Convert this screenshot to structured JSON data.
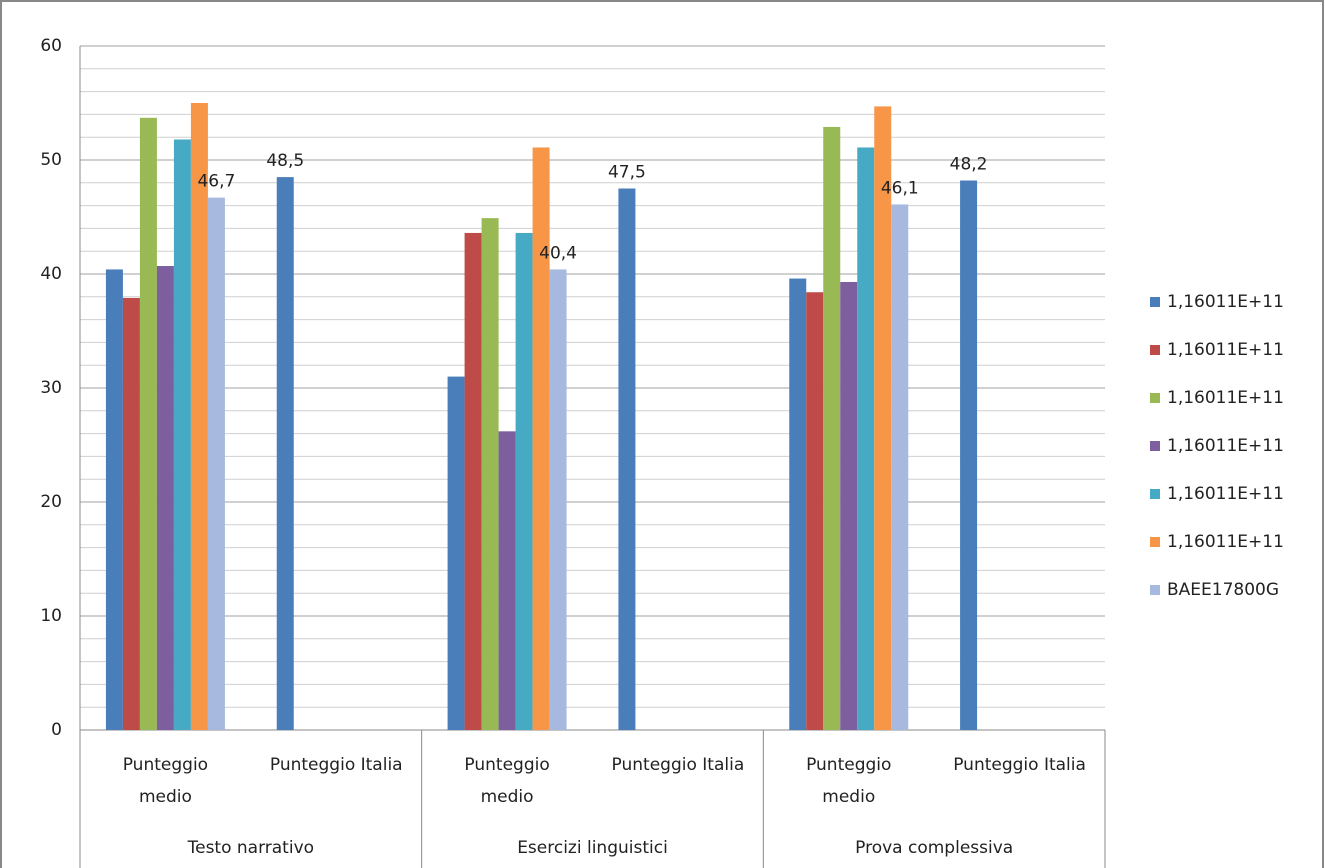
{
  "chart_data": {
    "type": "bar",
    "categories": [
      "Punteggio medio",
      "Punteggio Italia",
      "Punteggio medio",
      "Punteggio Italia",
      "Punteggio medio",
      "Punteggio Italia"
    ],
    "groups": [
      "Testo narrativo",
      "Esercizi linguistici",
      "Prova complessiva"
    ],
    "series": [
      {
        "name": "1,16011E+11",
        "color": "#4a7ebb",
        "values": [
          40.4,
          48.5,
          31.0,
          47.5,
          39.6,
          48.2
        ],
        "value_labels": [
          null,
          "48,5",
          null,
          "47,5",
          null,
          "48,2"
        ]
      },
      {
        "name": "1,16011E+11",
        "color": "#be4b48",
        "values": [
          37.9,
          null,
          43.6,
          null,
          38.4,
          null
        ]
      },
      {
        "name": "1,16011E+11",
        "color": "#98b954",
        "values": [
          53.7,
          null,
          44.9,
          null,
          52.9,
          null
        ]
      },
      {
        "name": "1,16011E+11",
        "color": "#7d5fa0",
        "values": [
          40.7,
          null,
          26.2,
          null,
          39.3,
          null
        ]
      },
      {
        "name": "1,16011E+11",
        "color": "#46aac5",
        "values": [
          51.8,
          null,
          43.6,
          null,
          51.1,
          null
        ]
      },
      {
        "name": "1,16011E+11",
        "color": "#f79646",
        "values": [
          55.0,
          null,
          51.1,
          null,
          54.7,
          null
        ]
      },
      {
        "name": "BAEE17800G",
        "color": "#a7b9de",
        "values": [
          46.7,
          null,
          40.4,
          null,
          46.1,
          null
        ],
        "value_labels": [
          "46,7",
          null,
          "40,4",
          null,
          "46,1",
          null
        ]
      }
    ],
    "ylim": [
      0,
      60
    ],
    "yticks": [
      0,
      10,
      20,
      30,
      40,
      50,
      60
    ],
    "minor_yticks": [
      2,
      4,
      6,
      8,
      12,
      14,
      16,
      18,
      22,
      24,
      26,
      28,
      32,
      34,
      36,
      38,
      42,
      44,
      46,
      48,
      52,
      54,
      56,
      58
    ],
    "grid": true,
    "legend": "right"
  }
}
